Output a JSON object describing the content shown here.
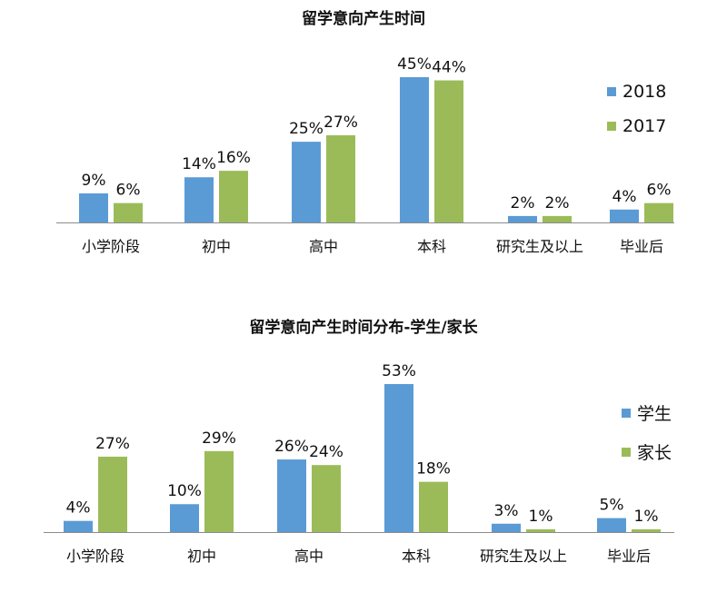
{
  "chart_data": [
    {
      "type": "bar",
      "title": "留学意向产生时间",
      "categories": [
        "小学阶段",
        "初中",
        "高中",
        "本科",
        "研究生及以上",
        "毕业后"
      ],
      "series": [
        {
          "name": "2018",
          "values": [
            9,
            14,
            25,
            45,
            2,
            4
          ],
          "labels": [
            "9%",
            "14%",
            "25%",
            "45%",
            "2%",
            "4%"
          ],
          "color": "#5b9bd5"
        },
        {
          "name": "2017",
          "values": [
            6,
            16,
            27,
            44,
            2,
            6
          ],
          "labels": [
            "6%",
            "16%",
            "27%",
            "44%",
            "2%",
            "6%"
          ],
          "color": "#9bbb59"
        }
      ],
      "ylim": [
        0,
        45
      ],
      "legend": "right"
    },
    {
      "type": "bar",
      "title": "留学意向产生时间分布-学生/家长",
      "categories": [
        "小学阶段",
        "初中",
        "高中",
        "本科",
        "研究生及以上",
        "毕业后"
      ],
      "series": [
        {
          "name": "学生",
          "values": [
            4,
            10,
            26,
            53,
            3,
            5
          ],
          "labels": [
            "4%",
            "10%",
            "26%",
            "53%",
            "3%",
            "5%"
          ],
          "color": "#5b9bd5"
        },
        {
          "name": "家长",
          "values": [
            27,
            29,
            24,
            18,
            1,
            1
          ],
          "labels": [
            "27%",
            "29%",
            "24%",
            "18%",
            "1%",
            "1%"
          ],
          "color": "#9bbb59"
        }
      ],
      "ylim": [
        0,
        53
      ],
      "legend": "right"
    }
  ]
}
